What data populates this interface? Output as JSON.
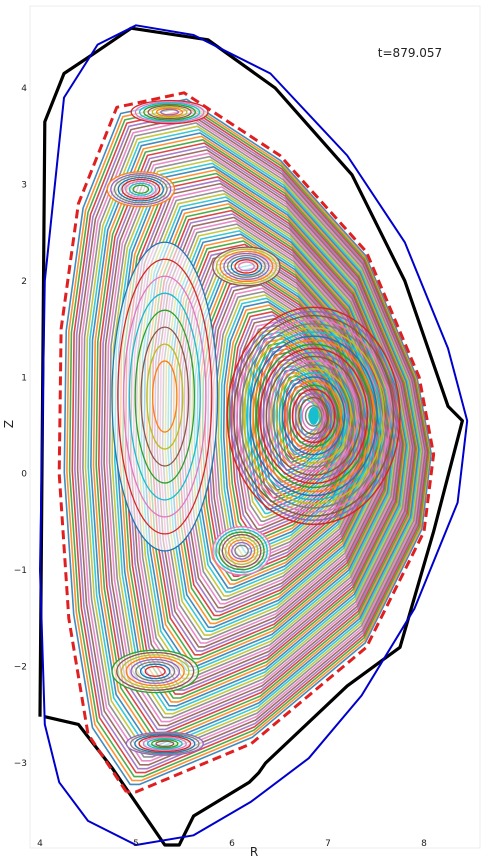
{
  "chart_data": {
    "type": "scatter",
    "title": "",
    "annotation": "t=879.057",
    "xlabel": "R",
    "ylabel": "Z",
    "xlim": [
      3.95,
      8.55
    ],
    "ylim": [
      -3.85,
      4.75
    ],
    "x_ticks": [
      4,
      5,
      6,
      7,
      8
    ],
    "y_ticks": [
      -3,
      -2,
      -1,
      0,
      1,
      2,
      3,
      4
    ],
    "grid": false,
    "series": [
      {
        "role": "wall",
        "color": "#000000",
        "style": "solid",
        "x": [
          4.0,
          4.05,
          4.25,
          4.55,
          4.95,
          5.75,
          6.45,
          7.25,
          7.8,
          8.25,
          8.4,
          8.1,
          7.75,
          7.2,
          6.35,
          6.28,
          6.18,
          5.6,
          5.45,
          5.3,
          4.75,
          4.4,
          4.05
        ],
        "y": [
          -2.52,
          3.65,
          4.15,
          4.35,
          4.62,
          4.5,
          4.0,
          3.1,
          2.0,
          0.7,
          0.55,
          -0.6,
          -1.8,
          -2.2,
          -3.0,
          -3.1,
          -3.2,
          -3.55,
          -3.85,
          -3.85,
          -3.05,
          -2.6,
          -2.52
        ]
      },
      {
        "role": "outer_boundary",
        "color": "#0000cc",
        "style": "solid",
        "x": [
          5.0,
          5.6,
          6.4,
          7.2,
          7.8,
          8.25,
          8.45,
          8.35,
          7.9,
          7.35,
          6.8,
          6.2,
          5.6,
          5.0,
          4.5,
          4.2,
          4.05,
          4.0,
          4.05,
          4.25,
          4.6
        ],
        "y": [
          4.65,
          4.55,
          4.15,
          3.3,
          2.4,
          1.3,
          0.55,
          -0.3,
          -1.4,
          -2.3,
          -2.95,
          -3.4,
          -3.75,
          -3.85,
          -3.6,
          -3.2,
          -2.6,
          -1.0,
          2.0,
          3.9,
          4.45
        ]
      },
      {
        "role": "lcfs",
        "color": "#e02020",
        "style": "dashed",
        "x": [
          4.9,
          4.5,
          4.3,
          4.2,
          4.22,
          4.4,
          4.8,
          5.5,
          6.5,
          7.4,
          7.95,
          8.1,
          8.0,
          7.4,
          6.2,
          5.0,
          4.9
        ],
        "y": [
          -3.3,
          -2.7,
          -1.5,
          0.0,
          1.5,
          2.8,
          3.8,
          3.95,
          3.3,
          2.3,
          1.0,
          0.2,
          -0.6,
          -1.8,
          -2.8,
          -3.3,
          -3.3
        ]
      }
    ],
    "magnetic_axis": {
      "x": 6.85,
      "y": 0.6
    },
    "island_chains": [
      {
        "x": 5.3,
        "y": 0.8,
        "rx": 0.55,
        "ry": 1.6
      },
      {
        "x": 5.05,
        "y": 2.95,
        "rx": 0.35,
        "ry": 0.18
      },
      {
        "x": 5.2,
        "y": -2.05,
        "rx": 0.45,
        "ry": 0.22
      },
      {
        "x": 5.35,
        "y": 3.75,
        "rx": 0.4,
        "ry": 0.12
      },
      {
        "x": 5.3,
        "y": -2.8,
        "rx": 0.4,
        "ry": 0.12
      },
      {
        "x": 6.15,
        "y": 2.15,
        "rx": 0.35,
        "ry": 0.2
      },
      {
        "x": 6.1,
        "y": -0.8,
        "rx": 0.3,
        "ry": 0.25
      }
    ],
    "palette": [
      "#1f77b4",
      "#ff7f0e",
      "#2ca02c",
      "#d62728",
      "#9467bd",
      "#8c564b",
      "#e377c2",
      "#7f7f7f",
      "#bcbd22",
      "#17becf"
    ]
  }
}
